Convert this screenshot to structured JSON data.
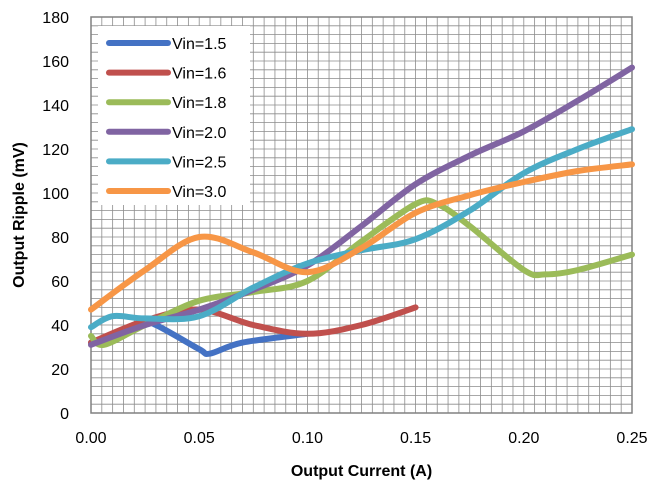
{
  "chart_data": {
    "type": "line",
    "title": "",
    "xlabel": "Output Current (A)",
    "ylabel": "Output Ripple (mV)",
    "xlim": [
      0,
      0.25
    ],
    "ylim": [
      0,
      180
    ],
    "x_ticks": [
      "0.00",
      "0.05",
      "0.10",
      "0.15",
      "0.20",
      "0.25"
    ],
    "y_ticks": [
      "0",
      "20",
      "40",
      "60",
      "80",
      "100",
      "120",
      "140",
      "160",
      "180"
    ],
    "grid": true,
    "legend_position": "top-left",
    "series": [
      {
        "name": "Vin=1.5",
        "color": "#4472c4",
        "points": [
          [
            0.0,
            32
          ],
          [
            0.025,
            40
          ],
          [
            0.03,
            40
          ],
          [
            0.05,
            29
          ],
          [
            0.055,
            27
          ],
          [
            0.07,
            32
          ],
          [
            0.1,
            36
          ]
        ]
      },
      {
        "name": "Vin=1.6",
        "color": "#c0504d",
        "points": [
          [
            0.0,
            32
          ],
          [
            0.025,
            42
          ],
          [
            0.05,
            47
          ],
          [
            0.075,
            40
          ],
          [
            0.1,
            36
          ],
          [
            0.125,
            40
          ],
          [
            0.15,
            48
          ]
        ]
      },
      {
        "name": "Vin=1.8",
        "color": "#9bbb59",
        "points": [
          [
            0.0,
            35
          ],
          [
            0.006,
            31
          ],
          [
            0.025,
            40
          ],
          [
            0.05,
            51
          ],
          [
            0.075,
            55
          ],
          [
            0.1,
            60
          ],
          [
            0.125,
            78
          ],
          [
            0.15,
            95
          ],
          [
            0.16,
            95
          ],
          [
            0.175,
            85
          ],
          [
            0.2,
            65
          ],
          [
            0.21,
            63
          ],
          [
            0.225,
            65
          ],
          [
            0.25,
            72
          ]
        ]
      },
      {
        "name": "Vin=2.0",
        "color": "#8064a2",
        "points": [
          [
            0.0,
            31
          ],
          [
            0.025,
            40
          ],
          [
            0.05,
            47
          ],
          [
            0.075,
            56
          ],
          [
            0.1,
            67
          ],
          [
            0.125,
            85
          ],
          [
            0.15,
            104
          ],
          [
            0.175,
            117
          ],
          [
            0.2,
            128
          ],
          [
            0.225,
            142
          ],
          [
            0.25,
            157
          ]
        ]
      },
      {
        "name": "Vin=2.5",
        "color": "#4bacc6",
        "points": [
          [
            0.0,
            39
          ],
          [
            0.01,
            44
          ],
          [
            0.025,
            43
          ],
          [
            0.05,
            44
          ],
          [
            0.075,
            57
          ],
          [
            0.1,
            68
          ],
          [
            0.125,
            74
          ],
          [
            0.15,
            79
          ],
          [
            0.175,
            92
          ],
          [
            0.2,
            109
          ],
          [
            0.225,
            120
          ],
          [
            0.25,
            129
          ]
        ]
      },
      {
        "name": "Vin=3.0",
        "color": "#f79646",
        "points": [
          [
            0.0,
            47
          ],
          [
            0.025,
            65
          ],
          [
            0.05,
            80
          ],
          [
            0.075,
            73
          ],
          [
            0.1,
            64
          ],
          [
            0.125,
            75
          ],
          [
            0.15,
            91
          ],
          [
            0.175,
            99
          ],
          [
            0.2,
            105
          ],
          [
            0.225,
            110
          ],
          [
            0.25,
            113
          ]
        ]
      }
    ]
  }
}
